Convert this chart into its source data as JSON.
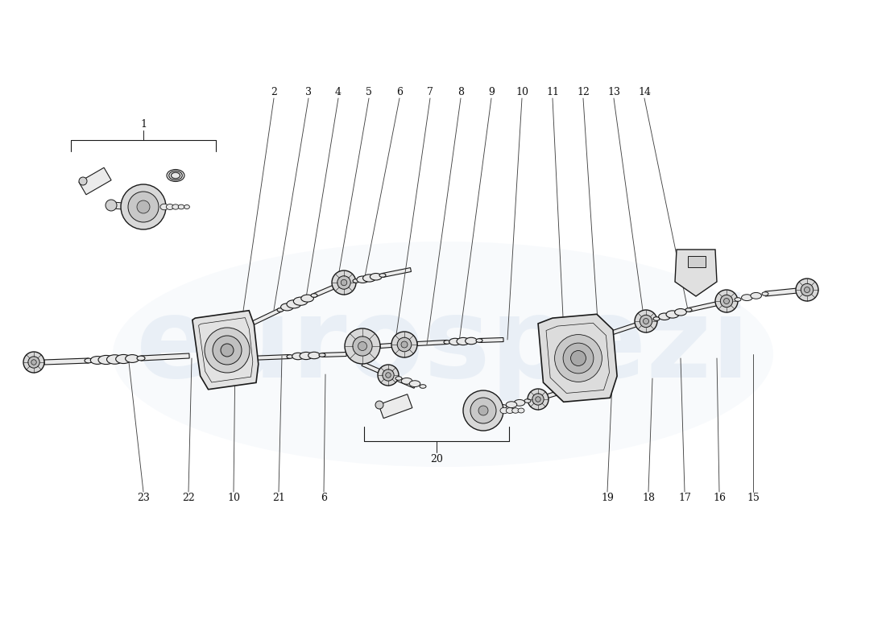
{
  "bg_color": "#ffffff",
  "line_color": "#1a1a1a",
  "text_color": "#111111",
  "watermark_text": "eurospezi",
  "watermark_color": "#b8cce4",
  "fig_w": 11.0,
  "fig_h": 8.0,
  "dpi": 100,
  "top_callouts": [
    [
      "2",
      340,
      115
    ],
    [
      "3",
      383,
      115
    ],
    [
      "4",
      420,
      115
    ],
    [
      "5",
      458,
      115
    ],
    [
      "6",
      496,
      115
    ],
    [
      "7",
      534,
      115
    ],
    [
      "8",
      572,
      115
    ],
    [
      "9",
      610,
      115
    ],
    [
      "10",
      648,
      115
    ],
    [
      "11",
      686,
      115
    ],
    [
      "12",
      724,
      115
    ],
    [
      "13",
      762,
      115
    ],
    [
      "14",
      800,
      115
    ]
  ],
  "bottom_callouts": [
    [
      "23",
      178,
      618
    ],
    [
      "22",
      234,
      618
    ],
    [
      "10",
      290,
      618
    ],
    [
      "21",
      346,
      618
    ],
    [
      "6",
      402,
      618
    ],
    [
      "20",
      527,
      645
    ],
    [
      "19",
      754,
      618
    ],
    [
      "18",
      805,
      618
    ],
    [
      "17",
      850,
      618
    ],
    [
      "16",
      893,
      618
    ],
    [
      "15",
      935,
      618
    ]
  ]
}
